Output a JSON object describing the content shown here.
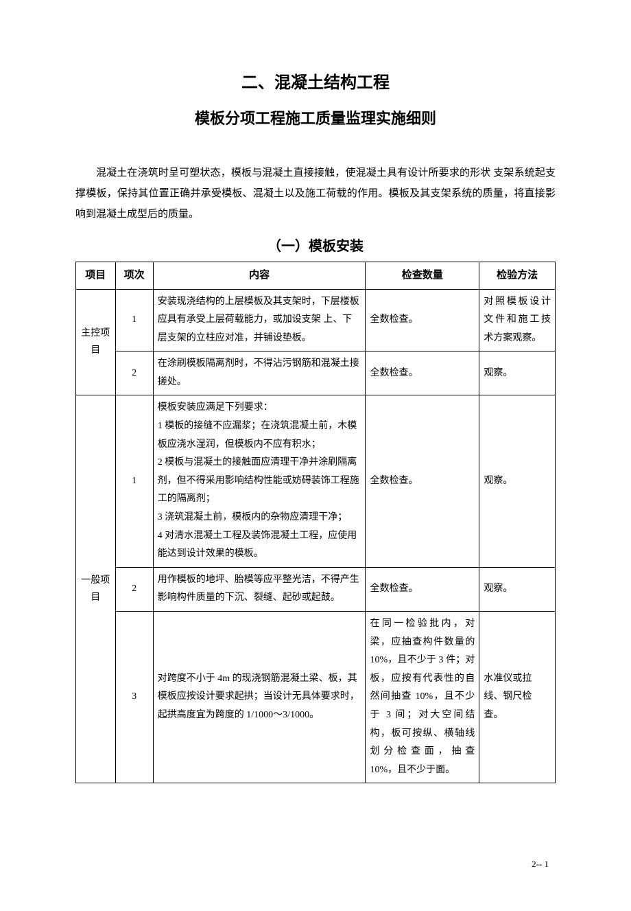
{
  "title1": "二、混凝土结构工程",
  "title2": "模板分项工程施工质量监理实施细则",
  "intro": "混凝土在浇筑时呈可塑状态，模板与混凝土直接接触，使混凝土具有设计所要求的形状 支架系统起支撑模板，保持其位置正确并承受模板、混凝土以及施工荷载的作用。模板及其支架系统的质量，将直接影响到混凝土成型后的质量。",
  "sectionTitle": "（一）模板安装",
  "table": {
    "headers": {
      "item": "项目",
      "seq": "项次",
      "content": "内容",
      "qty": "检查数量",
      "method": "检验方法"
    },
    "cat1": "主控项目",
    "cat2": "一般项目",
    "rows": [
      {
        "seq": "1",
        "content": "安装现浇结构的上层模板及其支架时，下层楼板应具有承受上层荷载能力，或加设支架 上、下层支架的立柱应对准，并铺设垫板。",
        "qty": "全数检查。",
        "method": "对照模板设计文件和施工技术方案观察。"
      },
      {
        "seq": "2",
        "content": "在涂刷模板隔离剂时，不得沾污钢筋和混凝土接搓处。",
        "qty": "全数检查。",
        "method": "观察。"
      },
      {
        "seq": "1",
        "content": "模板安装应满足下列要求：\n1 模板的接缝不应漏浆；在浇筑混凝土前，木模板应浇水湿润，但模板内不应有积水；\n2 模板与混凝土的接触面应清理干净并涂刷隔离剂，但不得采用影响结构性能或妨碍装饰工程施工的隔离剂；\n3 浇筑混凝土前，模板内的杂物应清理干净；\n4 对清水混凝土工程及装饰混凝土工程，应使用能达到设计效果的模板。",
        "qty": "全数检查。",
        "method": "观察。"
      },
      {
        "seq": "2",
        "content": "用作模板的地坪、胎模等应平整光洁，不得产生影响构件质量的下沉、裂缝、起砂或起鼓。",
        "qty": "全数检查。",
        "method": "观察。"
      },
      {
        "seq": "3",
        "content": "对跨度不小于 4m 的现浇钢筋混凝土梁、板，其模板应按设计要求起拱；当设计无具体要求时，起拱高度宜为跨度的 1/1000～3/1000。",
        "qty": "在同一检验批内，对梁，应抽查构件数量的 10%，且不少于 3 件；对板，应按有代表性的自然间抽查 10%，且不少于 3 间；对大空间结构，板可按纵、横轴线划分检查面，抽查 10%，且不少于面。",
        "method": "水准仪或拉线、钢尺检查。"
      }
    ]
  },
  "footer": "2-- 1"
}
